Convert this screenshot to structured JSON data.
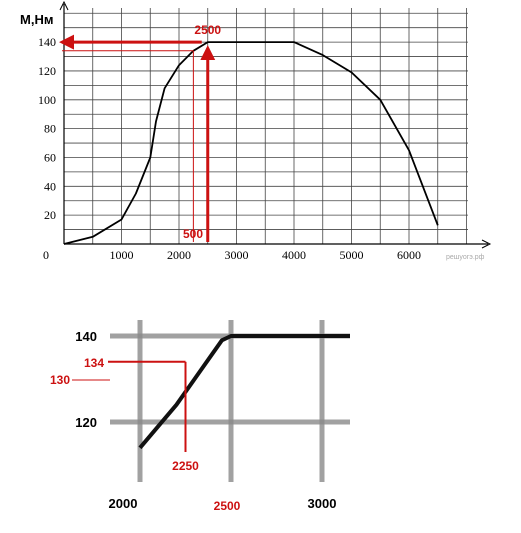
{
  "chart_data": [
    {
      "type": "line",
      "ylabel": "M,Нм",
      "xlabel": "",
      "xlim": [
        0,
        6500
      ],
      "ylim": [
        0,
        150
      ],
      "x_ticks": [
        "0",
        "1000",
        "2000",
        "3000",
        "4000",
        "5000",
        "6000"
      ],
      "y_ticks": [
        "20",
        "40",
        "60",
        "80",
        "100",
        "120",
        "140"
      ],
      "grid": true,
      "series": [
        {
          "x": [
            0,
            500,
            1000,
            1250,
            1500,
            1600,
            1750,
            2000,
            2250,
            2500,
            3000,
            3500,
            4000,
            4500,
            5000,
            5500,
            6000,
            6500
          ],
          "values": [
            0,
            5,
            17,
            35,
            60,
            85,
            108,
            124,
            134,
            140,
            140,
            140,
            140,
            131,
            119,
            100,
            65,
            13
          ]
        }
      ],
      "annotations": {
        "arrow_x_label": "2500",
        "arrow_x_value": 2500,
        "arrow_y_value": 140,
        "bottom_label": "500"
      },
      "watermark": "решуогэ.рф"
    },
    {
      "type": "line",
      "xlim": [
        2000,
        3000
      ],
      "ylim": [
        114,
        141
      ],
      "x_ticks": [
        "2000",
        "2500",
        "3000"
      ],
      "y_ticks": [
        "140",
        "120"
      ],
      "red_y_labels": [
        "134",
        "130"
      ],
      "grid": true,
      "series": [
        {
          "x": [
            2000,
            2100,
            2200,
            2300,
            2400,
            2450,
            2500,
            3000
          ],
          "values": [
            114,
            119,
            124,
            130,
            136,
            139,
            140,
            140
          ]
        }
      ],
      "annotations": {
        "marker_x_label": "2250",
        "marker_x_value": 2250,
        "marker_y_value": 134,
        "red_x_tick": "2500"
      }
    }
  ],
  "colors": {
    "annotation": "#cc1111",
    "grid": "#444444",
    "curve": "#000000"
  }
}
